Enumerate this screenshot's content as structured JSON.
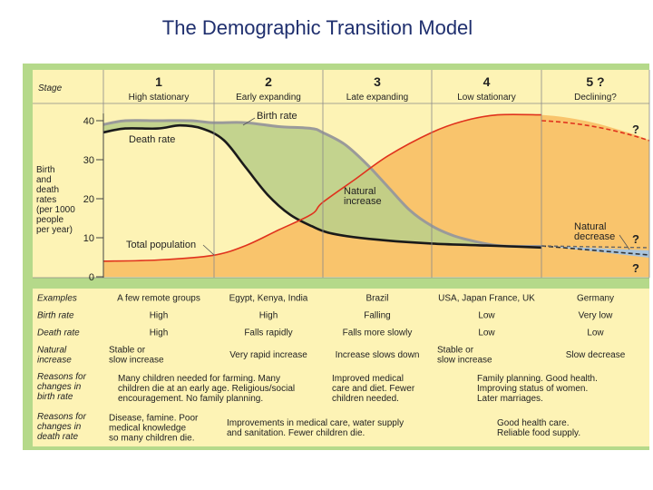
{
  "title": "The Demographic Transition Model",
  "header": {
    "stage_label": "Stage",
    "stages": [
      {
        "num": "1",
        "name": "High stationary"
      },
      {
        "num": "2",
        "name": "Early expanding"
      },
      {
        "num": "3",
        "name": "Late expanding"
      },
      {
        "num": "4",
        "name": "Low stationary"
      },
      {
        "num": "5 ?",
        "name": "Declining?"
      }
    ]
  },
  "axis": {
    "label_lines": [
      "Birth",
      "and",
      "death",
      "rates",
      "(per 1000",
      "people",
      "per year)"
    ],
    "ticks": [
      "0",
      "10",
      "20",
      "30",
      "40"
    ]
  },
  "annotations": {
    "birth_rate": "Birth rate",
    "death_rate": "Death rate",
    "natural_increase": [
      "Natural",
      "increase"
    ],
    "total_population": "Total population",
    "natural_decrease": [
      "Natural",
      "decrease"
    ],
    "q1": "?",
    "q2": "?",
    "q3": "?"
  },
  "chart_data": {
    "type": "line",
    "x_unit": "stage",
    "y_range": [
      0,
      45
    ],
    "series": [
      {
        "name": "Birth rate",
        "points": [
          [
            1.0,
            39
          ],
          [
            1.2,
            40
          ],
          [
            1.5,
            40
          ],
          [
            1.8,
            40
          ],
          [
            2.0,
            39.5
          ],
          [
            2.3,
            39.5
          ],
          [
            2.6,
            38.5
          ],
          [
            2.9,
            38
          ],
          [
            3.0,
            37
          ],
          [
            3.2,
            34
          ],
          [
            3.4,
            29
          ],
          [
            3.6,
            23
          ],
          [
            3.8,
            17
          ],
          [
            4.0,
            13
          ],
          [
            4.2,
            10.5
          ],
          [
            4.4,
            9
          ],
          [
            4.6,
            8
          ],
          [
            4.8,
            7.8
          ],
          [
            5.0,
            7.8
          ]
        ]
      },
      {
        "name": "Death rate",
        "points": [
          [
            1.0,
            37
          ],
          [
            1.2,
            38
          ],
          [
            1.5,
            38
          ],
          [
            1.7,
            38.8
          ],
          [
            1.9,
            38
          ],
          [
            2.1,
            35
          ],
          [
            2.3,
            28
          ],
          [
            2.5,
            21
          ],
          [
            2.7,
            16
          ],
          [
            2.9,
            13
          ],
          [
            3.1,
            11
          ],
          [
            3.5,
            9.5
          ],
          [
            4.0,
            8.5
          ],
          [
            4.5,
            8
          ],
          [
            5.0,
            7.5
          ],
          [
            6.0,
            5.6
          ]
        ]
      },
      {
        "name": "Total population",
        "points": [
          [
            1.0,
            4
          ],
          [
            1.5,
            4.3
          ],
          [
            2.0,
            5.5
          ],
          [
            2.3,
            8
          ],
          [
            2.6,
            12
          ],
          [
            2.9,
            16
          ],
          [
            3.0,
            19
          ],
          [
            3.3,
            25
          ],
          [
            3.6,
            31
          ],
          [
            4.0,
            37
          ],
          [
            4.3,
            40
          ],
          [
            4.6,
            41.5
          ],
          [
            5.0,
            41.5
          ],
          [
            5.4,
            40
          ],
          [
            5.8,
            37
          ],
          [
            6.0,
            35
          ]
        ]
      }
    ]
  },
  "table": {
    "rows": [
      {
        "label": [
          "Examples"
        ],
        "cells": [
          [
            "A few remote groups"
          ],
          [
            "Egypt, Kenya, India"
          ],
          [
            "Brazil"
          ],
          [
            "USA, Japan France, UK"
          ],
          [
            "Germany"
          ]
        ]
      },
      {
        "label": [
          "Birth rate"
        ],
        "cells": [
          [
            "High"
          ],
          [
            "High"
          ],
          [
            "Falling"
          ],
          [
            "Low"
          ],
          [
            "Very low"
          ]
        ]
      },
      {
        "label": [
          "Death rate"
        ],
        "cells": [
          [
            "High"
          ],
          [
            "Falls rapidly"
          ],
          [
            "Falls more slowly"
          ],
          [
            "Low"
          ],
          [
            "Low"
          ]
        ]
      },
      {
        "label": [
          "Natural",
          "increase"
        ],
        "cells": [
          [
            "Stable or",
            "slow increase"
          ],
          [
            "Very rapid increase"
          ],
          [
            "Increase slows down"
          ],
          [
            "Stable or",
            "slow increase"
          ],
          [
            "Slow decrease"
          ]
        ]
      }
    ],
    "reasons_birth": {
      "label": [
        "Reasons for",
        "changes in",
        "birth rate"
      ],
      "a": [
        "Many children needed for farming. Many",
        "children die at an early age. Religious/social",
        "encouragement. No family planning."
      ],
      "b": [
        "Improved medical",
        "care and diet. Fewer",
        "children needed."
      ],
      "c": [
        "Family planning. Good health.",
        "Improving status of women.",
        "Later marriages."
      ]
    },
    "reasons_death": {
      "label": [
        "Reasons for",
        "changes in",
        "death rate"
      ],
      "a": [
        "Disease, famine. Poor",
        "medical knowledge",
        "so many children die."
      ],
      "b": [
        "Improvements in medical care, water supply",
        "and sanitation. Fewer children die."
      ],
      "c": [
        "Good health care.",
        "Reliable food supply."
      ]
    }
  },
  "colors": {
    "frame_green": "#b5d98a",
    "cell_yellow": "#fdf3b5",
    "orange_fill": "#f9c46c",
    "green_fill": "#bccf8a",
    "decrease_fill": "#a9c4dc",
    "birth_line": "#9a9a9a",
    "death_line": "#1a1a1a",
    "pop_line": "#e0321d"
  }
}
